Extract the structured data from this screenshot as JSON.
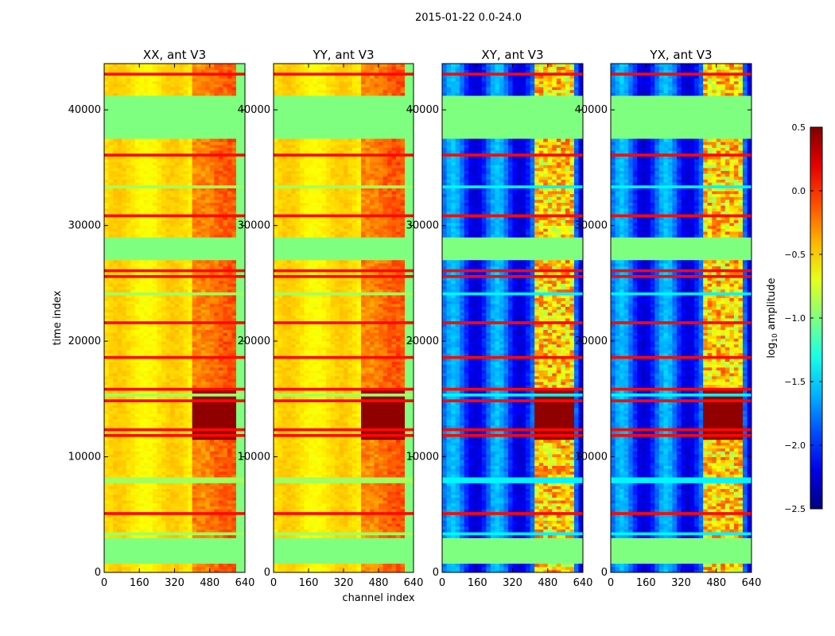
{
  "chart_data": {
    "type": "heatmap",
    "title": "2015-01-22 0.0-24.0",
    "xlabel": "channel index",
    "ylabel": "time index",
    "xlim": [
      0,
      640
    ],
    "ylim": [
      0,
      44000
    ],
    "xticks": [
      0,
      160,
      320,
      480,
      640
    ],
    "yticks": [
      0,
      10000,
      20000,
      30000,
      40000
    ],
    "panels": [
      {
        "title": "XX, ant V3",
        "kind": "auto"
      },
      {
        "title": "YY, ant V3",
        "kind": "auto"
      },
      {
        "title": "XY, ant V3",
        "kind": "cross"
      },
      {
        "title": "YX, ant V3",
        "kind": "cross"
      }
    ],
    "colorbar": {
      "label": "log10 amplitude",
      "label_main": "log",
      "label_sub": "10",
      "label_tail": " amplitude",
      "min": -2.5,
      "max": 0.5,
      "ticks": [
        0.5,
        0.0,
        -0.5,
        -1.0,
        -1.5,
        -2.0,
        -2.5
      ],
      "tick_labels": [
        "0.5",
        "0.0",
        "−0.5",
        "−1.0",
        "−1.5",
        "−2.0",
        "−2.5"
      ],
      "colormap": "jet"
    },
    "flagged_time_ranges": [
      [
        800,
        3000
      ],
      [
        27000,
        29000
      ],
      [
        37500,
        41300
      ]
    ],
    "rfi_time_ranges": [
      [
        11500,
        16000
      ]
    ],
    "colors": {
      "flag": "#7fff7f"
    }
  }
}
